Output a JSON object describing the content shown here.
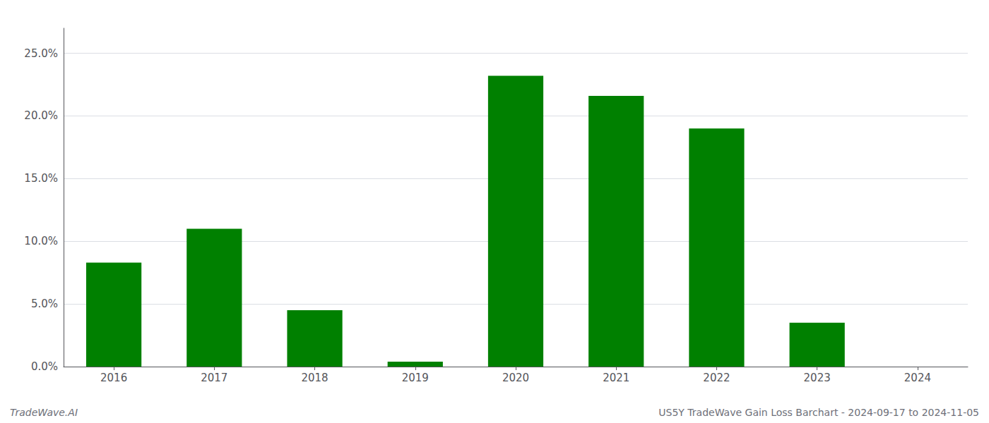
{
  "chart_data": {
    "type": "bar",
    "categories": [
      "2016",
      "2017",
      "2018",
      "2019",
      "2020",
      "2021",
      "2022",
      "2023",
      "2024"
    ],
    "values": [
      0.083,
      0.11,
      0.045,
      0.004,
      0.232,
      0.216,
      0.19,
      0.035,
      0.0
    ],
    "color": "#008000",
    "ylim": [
      0,
      0.27
    ],
    "yticks": [
      {
        "value": 0.0,
        "label": "0.0%"
      },
      {
        "value": 0.05,
        "label": "5.0%"
      },
      {
        "value": 0.1,
        "label": "10.0%"
      },
      {
        "value": 0.15,
        "label": "15.0%"
      },
      {
        "value": 0.2,
        "label": "20.0%"
      },
      {
        "value": 0.25,
        "label": "25.0%"
      }
    ],
    "grid": true,
    "annotations": [
      "TradeWave.AI",
      "US5Y TradeWave Gain Loss Barchart - 2024-09-17 to 2024-11-05"
    ]
  }
}
